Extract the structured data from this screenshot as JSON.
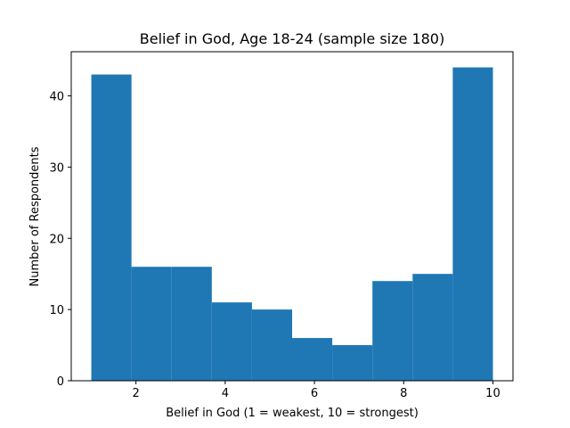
{
  "chart_data": {
    "type": "bar",
    "title": "Belief in God, Age 18-24 (sample size 180)",
    "xlabel": "Belief in God (1 = weakest, 10 = strongest)",
    "ylabel": "Number of Respondents",
    "bins": [
      {
        "start": 1.0,
        "end": 1.9,
        "value": 43
      },
      {
        "start": 1.9,
        "end": 2.8,
        "value": 16
      },
      {
        "start": 2.8,
        "end": 3.7,
        "value": 16
      },
      {
        "start": 3.7,
        "end": 4.6,
        "value": 11
      },
      {
        "start": 4.6,
        "end": 5.5,
        "value": 10
      },
      {
        "start": 5.5,
        "end": 6.4,
        "value": 6
      },
      {
        "start": 6.4,
        "end": 7.3,
        "value": 5
      },
      {
        "start": 7.3,
        "end": 8.2,
        "value": 14
      },
      {
        "start": 8.2,
        "end": 9.1,
        "value": 15
      },
      {
        "start": 9.1,
        "end": 10.0,
        "value": 44
      }
    ],
    "xlim": [
      0.55,
      10.45
    ],
    "ylim": [
      0,
      46.2
    ],
    "xticks": [
      2,
      4,
      6,
      8,
      10
    ],
    "yticks": [
      0,
      10,
      20,
      30,
      40
    ],
    "bar_color": "#1f77b4",
    "grid": false,
    "legend": "none"
  }
}
